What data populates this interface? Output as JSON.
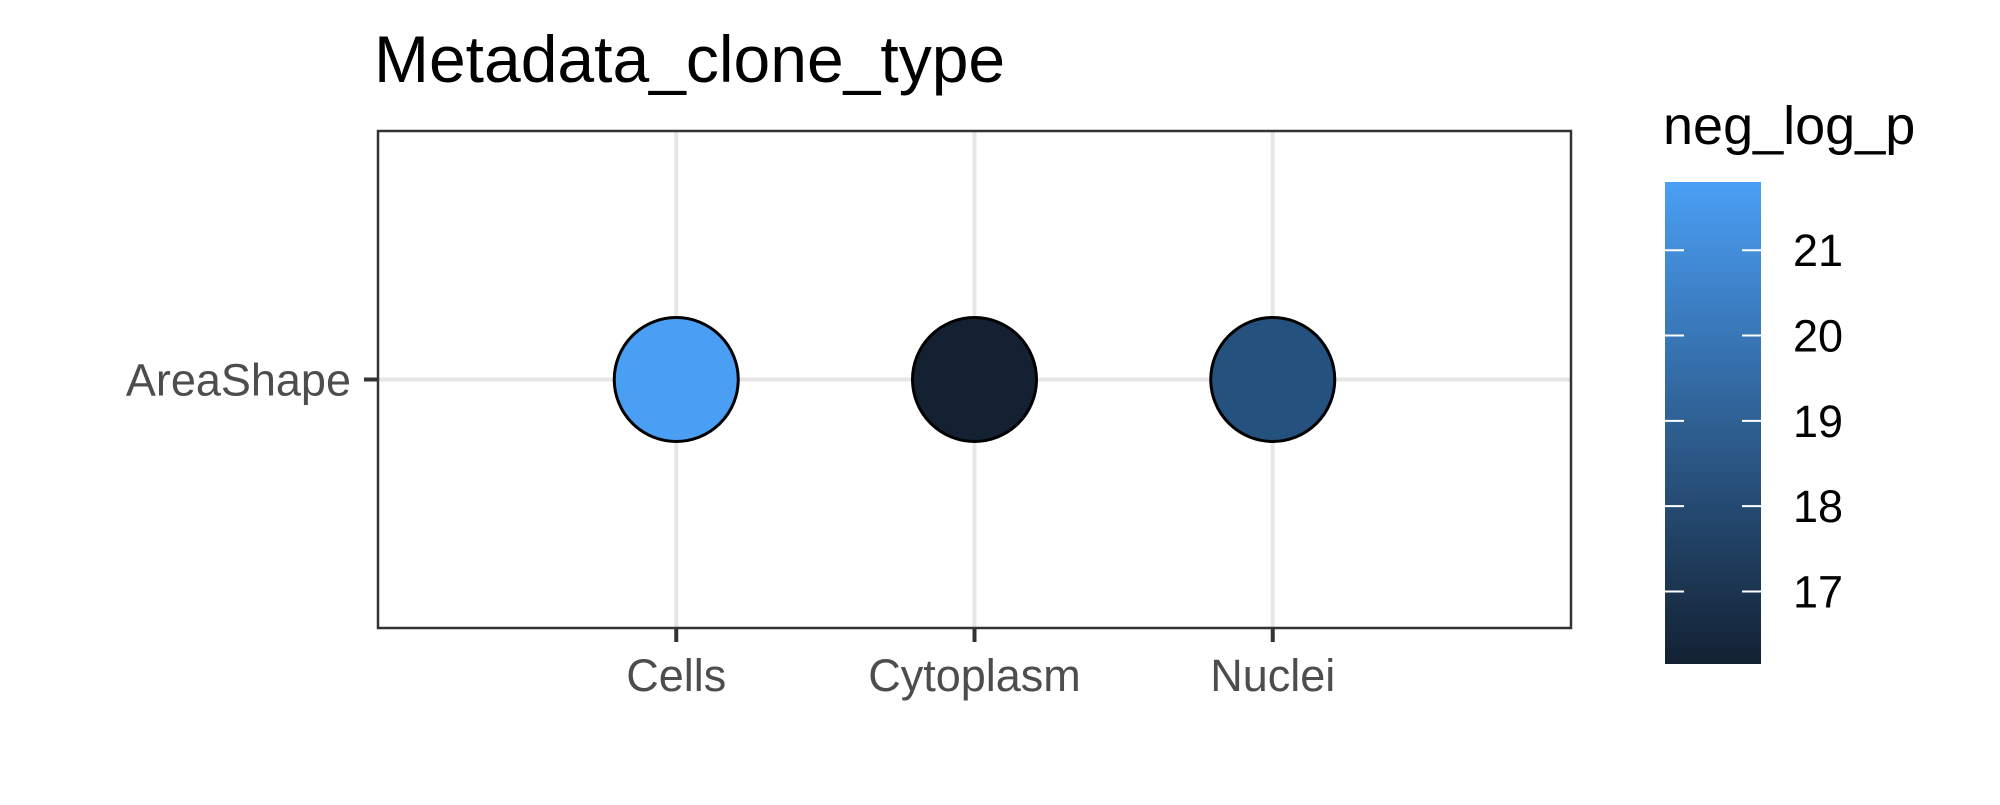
{
  "chart_data": {
    "type": "scatter",
    "title": "Metadata_clone_type",
    "xlabel": "",
    "ylabel": "",
    "categories": [
      "Cells",
      "Cytoplasm",
      "Nuclei"
    ],
    "y_categories": [
      "AreaShape"
    ],
    "grid": true,
    "points": [
      {
        "x": "Cells",
        "y": "AreaShape",
        "neg_log_p": 21.7,
        "color": "#4a9ff5"
      },
      {
        "x": "Cytoplasm",
        "y": "AreaShape",
        "neg_log_p": 16.2,
        "color": "#132132"
      },
      {
        "x": "Nuclei",
        "y": "AreaShape",
        "neg_log_p": 18.7,
        "color": "#24517d"
      }
    ],
    "legend": {
      "title": "neg_log_p",
      "placement": "right",
      "type": "colorbar",
      "ticks": [
        17,
        18,
        19,
        20,
        21
      ],
      "tick_labels": [
        "17",
        "18",
        "19",
        "20",
        "21"
      ],
      "range": [
        16.15,
        21.8
      ],
      "color_low": "#132132",
      "color_high": "#4a9ff5"
    },
    "colors": {
      "grid": "#e6e6e6",
      "panel_border": "#333333",
      "tick_text": "#4d4d4d",
      "point_outline": "#000000"
    }
  }
}
